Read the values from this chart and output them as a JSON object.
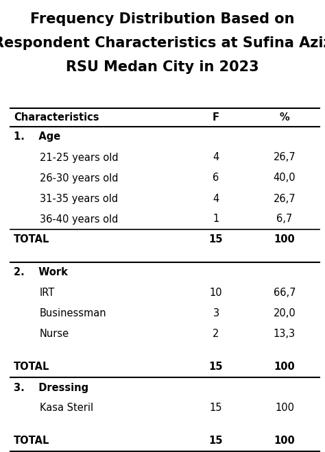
{
  "title_lines": [
    "Frequency Distribution Based on",
    "Respondent Characteristics at Sufina Aziz",
    "RSU Medan City in 2023"
  ],
  "title_fontsize": 15,
  "col_headers": [
    "Characteristics",
    "F",
    "%"
  ],
  "rows": [
    {
      "label": "1.    Age",
      "indent": 0,
      "bold": true,
      "f": "",
      "pct": "",
      "line_after": false,
      "spacer_after": false
    },
    {
      "label": "21-25 years old",
      "indent": 1,
      "bold": false,
      "f": "4",
      "pct": "26,7",
      "line_after": false,
      "spacer_after": false
    },
    {
      "label": "26-30 years old",
      "indent": 1,
      "bold": false,
      "f": "6",
      "pct": "40,0",
      "line_after": false,
      "spacer_after": false
    },
    {
      "label": "31-35 years old",
      "indent": 1,
      "bold": false,
      "f": "4",
      "pct": "26,7",
      "line_after": false,
      "spacer_after": false
    },
    {
      "label": "36-40 years old",
      "indent": 1,
      "bold": false,
      "f": "1",
      "pct": "6,7",
      "line_after": true,
      "spacer_after": false
    },
    {
      "label": "TOTAL",
      "indent": 0,
      "bold": true,
      "f": "15",
      "pct": "100",
      "line_after": false,
      "spacer_after": true,
      "is_total": true
    },
    {
      "label": "2.    Work",
      "indent": 0,
      "bold": true,
      "f": "",
      "pct": "",
      "line_after": false,
      "spacer_after": false
    },
    {
      "label": "IRT",
      "indent": 1,
      "bold": false,
      "f": "10",
      "pct": "66,7",
      "line_after": false,
      "spacer_after": false
    },
    {
      "label": "Businessman",
      "indent": 1,
      "bold": false,
      "f": "3",
      "pct": "20,0",
      "line_after": false,
      "spacer_after": false
    },
    {
      "label": "Nurse",
      "indent": 1,
      "bold": false,
      "f": "2",
      "pct": "13,3",
      "line_after": false,
      "spacer_after": true
    },
    {
      "label": "TOTAL",
      "indent": 0,
      "bold": true,
      "f": "15",
      "pct": "100",
      "line_after": true,
      "spacer_after": false,
      "is_total": true
    },
    {
      "label": "3.    Dressing",
      "indent": 0,
      "bold": true,
      "f": "",
      "pct": "",
      "line_after": false,
      "spacer_after": false
    },
    {
      "label": "Kasa Steril",
      "indent": 1,
      "bold": false,
      "f": "15",
      "pct": "100",
      "line_after": false,
      "spacer_after": true
    },
    {
      "label": "TOTAL",
      "indent": 0,
      "bold": true,
      "f": "15",
      "pct": "100",
      "line_after": false,
      "spacer_after": false,
      "is_total": true,
      "last": true
    }
  ],
  "bg_color": "#ffffff",
  "text_color": "#000000",
  "line_color": "#000000",
  "fig_width": 4.74,
  "fig_height": 6.6,
  "dpi": 100
}
